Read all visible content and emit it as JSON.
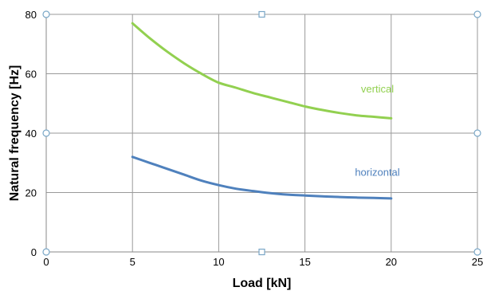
{
  "chart_data": {
    "type": "line",
    "xlabel": "Load [kN]",
    "ylabel": "Natural frequency  [Hz]",
    "xlim": [
      0,
      25
    ],
    "ylim": [
      0,
      80
    ],
    "x_ticks": [
      "0",
      "5",
      "10",
      "15",
      "20",
      "25"
    ],
    "y_ticks": [
      "0",
      "20",
      "40",
      "60",
      "80"
    ],
    "grid": true,
    "series": [
      {
        "name": "vertical",
        "color": "#92d050",
        "x": [
          5,
          6,
          7,
          8,
          9,
          10,
          11,
          12,
          13,
          14,
          15,
          16,
          17,
          18,
          19,
          20
        ],
        "y": [
          77,
          72,
          67.5,
          63.5,
          60,
          57,
          55.3,
          53.5,
          52,
          50.5,
          49,
          47.8,
          46.8,
          46,
          45.5,
          45
        ]
      },
      {
        "name": "horizontal",
        "color": "#4f81bd",
        "x": [
          5,
          6,
          7,
          8,
          9,
          10,
          11,
          12,
          13,
          14,
          15,
          16,
          17,
          18,
          19,
          20
        ],
        "y": [
          32,
          30,
          28,
          26,
          24,
          22.5,
          21.3,
          20.5,
          19.8,
          19.3,
          19,
          18.7,
          18.5,
          18.3,
          18.2,
          18
        ]
      }
    ]
  }
}
